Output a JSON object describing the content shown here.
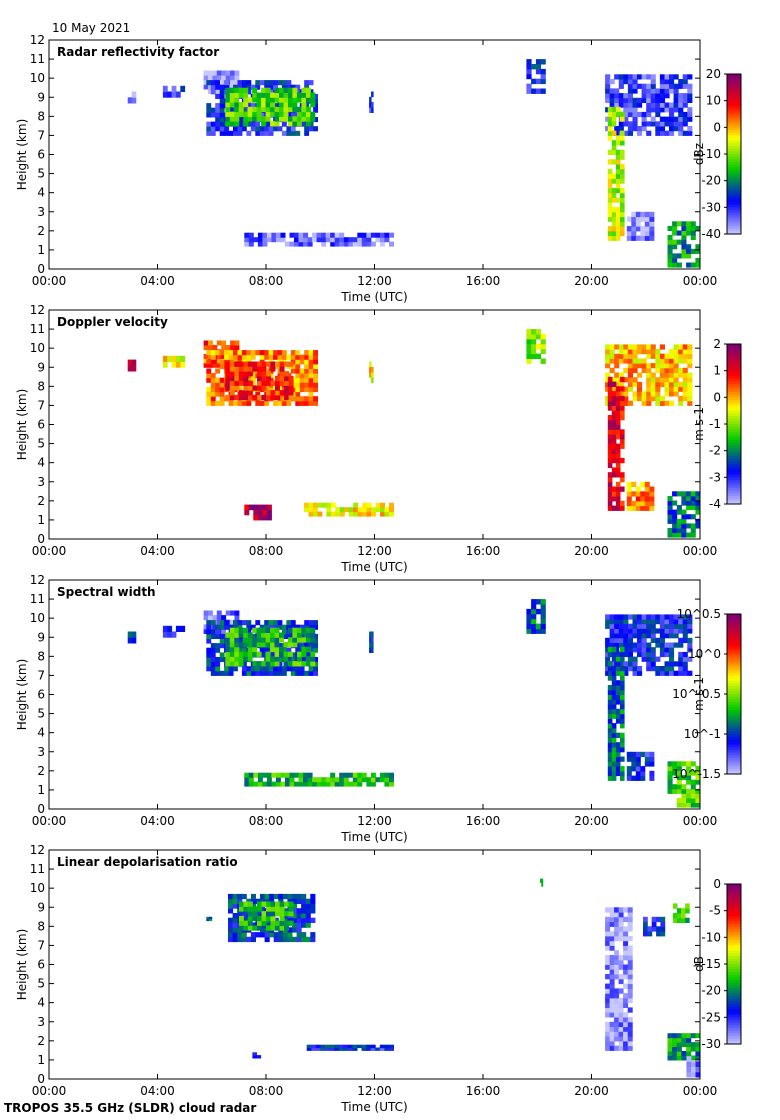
{
  "date": "10 May 2021",
  "footer": "TROPOS 35.5 GHz (SLDR) cloud radar",
  "xaxis": {
    "label": "Time (UTC)",
    "ticks": [
      "00:00",
      "04:00",
      "08:00",
      "12:00",
      "16:00",
      "20:00",
      "00:00"
    ],
    "range_hours": [
      0,
      24
    ]
  },
  "yaxis": {
    "label": "Height (km)",
    "ticks": [
      "0",
      "1",
      "2",
      "3",
      "4",
      "5",
      "6",
      "7",
      "8",
      "9",
      "10",
      "11",
      "12"
    ],
    "range_km": [
      0,
      12
    ]
  },
  "chart_data": [
    {
      "type": "heatmap",
      "title": "Radar reflectivity factor",
      "xlabel": "Time (UTC)",
      "ylabel": "Height (km)",
      "colorbar": {
        "label": "dBz",
        "ticks": [
          "20",
          "10",
          "0",
          "-10",
          "-20",
          "-30",
          "-40"
        ],
        "range": [
          -40,
          20
        ],
        "colors": [
          "#c8c8ff",
          "#0000ff",
          "#00c800",
          "#ffff00",
          "#ff0000",
          "#780078"
        ]
      },
      "regions": [
        {
          "t0": 2.9,
          "t1": 3.2,
          "z0": 8.7,
          "z1": 9.3,
          "v": 0.1
        },
        {
          "t0": 4.2,
          "t1": 5.0,
          "z0": 9.0,
          "z1": 9.6,
          "v": 0.15
        },
        {
          "t0": 5.7,
          "t1": 7.0,
          "z0": 9.2,
          "z1": 10.4,
          "v": 0.02
        },
        {
          "t0": 5.8,
          "t1": 9.9,
          "z0": 7.0,
          "z1": 9.9,
          "v": 0.2
        },
        {
          "t0": 6.5,
          "t1": 9.8,
          "z0": 7.5,
          "z1": 9.5,
          "v": 0.45
        },
        {
          "t0": 11.8,
          "t1": 11.95,
          "z0": 8.2,
          "z1": 9.3,
          "v": 0.15
        },
        {
          "t0": 7.2,
          "t1": 12.7,
          "z0": 1.2,
          "z1": 1.9,
          "v": 0.1
        },
        {
          "t0": 17.6,
          "t1": 18.3,
          "z0": 9.2,
          "z1": 11.0,
          "v": 0.2
        },
        {
          "t0": 20.5,
          "t1": 23.7,
          "z0": 7.0,
          "z1": 10.2,
          "v": 0.15
        },
        {
          "t0": 20.6,
          "t1": 21.2,
          "z0": 1.5,
          "z1": 8.5,
          "v": 0.55
        },
        {
          "t0": 21.3,
          "t1": 22.3,
          "z0": 1.5,
          "z1": 3.0,
          "v": 0.05
        },
        {
          "t0": 22.8,
          "t1": 24.0,
          "z0": 0.1,
          "z1": 2.5,
          "v": 0.35
        }
      ]
    },
    {
      "type": "heatmap",
      "title": "Doppler velocity",
      "xlabel": "Time (UTC)",
      "ylabel": "Height (km)",
      "colorbar": {
        "label": "m s-1",
        "ticks": [
          "2",
          "1",
          "0",
          "-1",
          "-2",
          "-3",
          "-4"
        ],
        "range": [
          -4,
          2
        ],
        "colors": [
          "#c8c8ff",
          "#0000ff",
          "#00c800",
          "#ffff00",
          "#ff0000",
          "#780078"
        ]
      },
      "regions": [
        {
          "t0": 2.9,
          "t1": 3.2,
          "z0": 8.8,
          "z1": 9.4,
          "v": 0.85
        },
        {
          "t0": 4.2,
          "t1": 5.0,
          "z0": 9.0,
          "z1": 9.6,
          "v": 0.6
        },
        {
          "t0": 5.7,
          "t1": 7.0,
          "z0": 9.0,
          "z1": 10.4,
          "v": 0.75
        },
        {
          "t0": 5.8,
          "t1": 9.9,
          "z0": 7.0,
          "z1": 9.9,
          "v": 0.7
        },
        {
          "t0": 6.5,
          "t1": 9.0,
          "z0": 7.3,
          "z1": 9.3,
          "v": 0.8
        },
        {
          "t0": 11.8,
          "t1": 11.95,
          "z0": 8.2,
          "z1": 9.3,
          "v": 0.6
        },
        {
          "t0": 7.2,
          "t1": 8.2,
          "z0": 1.0,
          "z1": 1.8,
          "v": 0.9
        },
        {
          "t0": 9.4,
          "t1": 12.7,
          "z0": 1.2,
          "z1": 1.9,
          "v": 0.6
        },
        {
          "t0": 17.6,
          "t1": 18.3,
          "z0": 9.2,
          "z1": 11.0,
          "v": 0.5
        },
        {
          "t0": 20.5,
          "t1": 23.7,
          "z0": 7.0,
          "z1": 10.2,
          "v": 0.65
        },
        {
          "t0": 20.6,
          "t1": 21.2,
          "z0": 1.5,
          "z1": 8.5,
          "v": 0.85
        },
        {
          "t0": 21.3,
          "t1": 22.3,
          "z0": 1.5,
          "z1": 3.0,
          "v": 0.7
        },
        {
          "t0": 22.8,
          "t1": 24.0,
          "z0": 0.1,
          "z1": 2.5,
          "v": 0.3
        }
      ]
    },
    {
      "type": "heatmap",
      "title": "Spectral width",
      "xlabel": "Time (UTC)",
      "ylabel": "Height (km)",
      "colorbar": {
        "label": "m s-1",
        "ticks": [
          "10^0.5",
          "10^0",
          "10^-0.5",
          "10^-1",
          "10^-1.5"
        ],
        "range": [
          -1.5,
          0.5
        ],
        "colors": [
          "#c8c8ff",
          "#0000ff",
          "#00c800",
          "#ffff00",
          "#ff0000",
          "#780078"
        ]
      },
      "regions": [
        {
          "t0": 2.9,
          "t1": 3.2,
          "z0": 8.7,
          "z1": 9.3,
          "v": 0.2
        },
        {
          "t0": 4.2,
          "t1": 5.0,
          "z0": 9.0,
          "z1": 9.6,
          "v": 0.2
        },
        {
          "t0": 5.7,
          "t1": 7.0,
          "z0": 9.2,
          "z1": 10.4,
          "v": 0.1
        },
        {
          "t0": 5.8,
          "t1": 9.9,
          "z0": 7.0,
          "z1": 9.9,
          "v": 0.25
        },
        {
          "t0": 6.5,
          "t1": 9.8,
          "z0": 7.5,
          "z1": 9.5,
          "v": 0.4
        },
        {
          "t0": 11.8,
          "t1": 11.95,
          "z0": 8.2,
          "z1": 9.3,
          "v": 0.2
        },
        {
          "t0": 7.2,
          "t1": 12.7,
          "z0": 1.2,
          "z1": 1.9,
          "v": 0.4
        },
        {
          "t0": 17.6,
          "t1": 18.3,
          "z0": 9.2,
          "z1": 11.0,
          "v": 0.3
        },
        {
          "t0": 20.5,
          "t1": 23.7,
          "z0": 7.0,
          "z1": 10.2,
          "v": 0.2
        },
        {
          "t0": 20.6,
          "t1": 21.2,
          "z0": 1.5,
          "z1": 8.5,
          "v": 0.3
        },
        {
          "t0": 21.3,
          "t1": 22.3,
          "z0": 1.5,
          "z1": 3.0,
          "v": 0.2
        },
        {
          "t0": 22.8,
          "t1": 24.0,
          "z0": 0.1,
          "z1": 2.5,
          "v": 0.45
        }
      ]
    },
    {
      "type": "heatmap",
      "title": "Linear depolarisation ratio",
      "xlabel": "Time (UTC)",
      "ylabel": "Height (km)",
      "colorbar": {
        "label": "dB",
        "ticks": [
          "0",
          "-5",
          "-10",
          "-15",
          "-20",
          "-25",
          "-30"
        ],
        "range": [
          -30,
          0
        ],
        "colors": [
          "#c8c8ff",
          "#0000ff",
          "#00c800",
          "#ffff00",
          "#ff0000",
          "#780078"
        ]
      },
      "regions": [
        {
          "t0": 5.8,
          "t1": 6.0,
          "z0": 8.3,
          "z1": 8.5,
          "v": 0.35
        },
        {
          "t0": 6.6,
          "t1": 9.8,
          "z0": 7.2,
          "z1": 9.7,
          "v": 0.25
        },
        {
          "t0": 7.0,
          "t1": 9.0,
          "z0": 7.8,
          "z1": 9.3,
          "v": 0.4
        },
        {
          "t0": 7.5,
          "t1": 7.8,
          "z0": 1.1,
          "z1": 1.4,
          "v": 0.2
        },
        {
          "t0": 9.5,
          "t1": 12.7,
          "z0": 1.5,
          "z1": 1.8,
          "v": 0.2
        },
        {
          "t0": 18.1,
          "t1": 18.2,
          "z0": 10.1,
          "z1": 10.5,
          "v": 0.4
        },
        {
          "t0": 20.5,
          "t1": 21.5,
          "z0": 1.5,
          "z1": 9.0,
          "v": 0.05
        },
        {
          "t0": 21.9,
          "t1": 22.7,
          "z0": 7.5,
          "z1": 8.5,
          "v": 0.2
        },
        {
          "t0": 23.0,
          "t1": 23.6,
          "z0": 8.2,
          "z1": 9.2,
          "v": 0.4
        },
        {
          "t0": 22.8,
          "t1": 24.0,
          "z0": 1.0,
          "z1": 2.4,
          "v": 0.35
        },
        {
          "t0": 23.5,
          "t1": 24.0,
          "z0": 0.1,
          "z1": 1.2,
          "v": 0.1
        }
      ]
    }
  ]
}
